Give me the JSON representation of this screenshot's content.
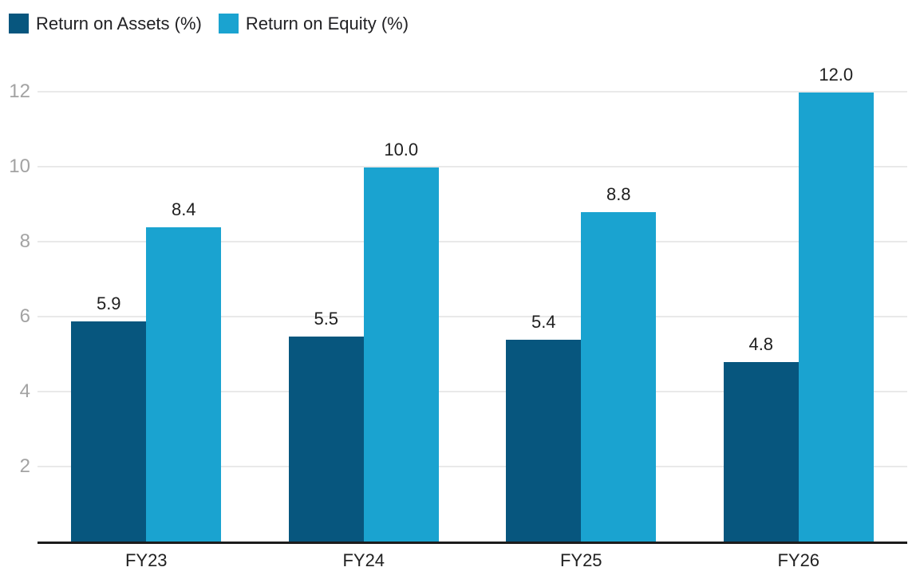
{
  "chart_data": {
    "type": "bar",
    "title": "",
    "xlabel": "",
    "ylabel": "",
    "categories": [
      "FY23",
      "FY24",
      "FY25",
      "FY26"
    ],
    "series": [
      {
        "name": "Return on Assets (%)",
        "color": "#07567e",
        "values": [
          5.9,
          5.5,
          5.4,
          4.8
        ],
        "value_labels": [
          "5.9",
          "5.5",
          "5.4",
          "4.8"
        ]
      },
      {
        "name": "Return on Equity (%)",
        "color": "#1aa3d0",
        "values": [
          8.4,
          10.0,
          8.8,
          12.0
        ],
        "value_labels": [
          "8.4",
          "10.0",
          "8.8",
          "12.0"
        ]
      }
    ],
    "y_ticks": [
      2,
      4,
      6,
      8,
      10,
      12
    ],
    "y_tick_labels": [
      "2",
      "4",
      "6",
      "8",
      "10",
      "12"
    ],
    "ylim": [
      0,
      12.55
    ],
    "grid": true,
    "legend_position": "top-left"
  },
  "legend": {
    "items": [
      {
        "label": "Return on Assets (%)",
        "color": "#07567e"
      },
      {
        "label": "Return on Equity (%)",
        "color": "#1aa3d0"
      }
    ]
  },
  "colors": {
    "background": "#ffffff",
    "series_return_on_assets": "#07567e",
    "series_return_on_equity": "#1aa3d0",
    "gridline": "#e9e9e9",
    "axis_line": "#1c1c1c",
    "y_tick_text": "#a3a3a3",
    "x_tick_text": "#212121",
    "value_label_text": "#1f1f1f",
    "legend_text": "#212124"
  }
}
